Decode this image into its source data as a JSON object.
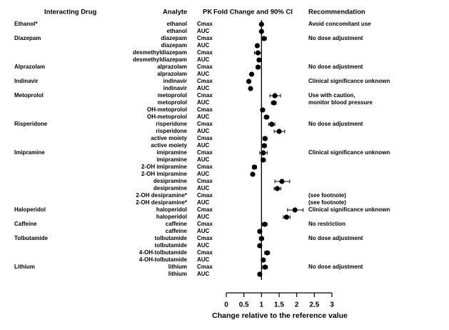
{
  "chart_data": {
    "type": "forest",
    "headers": [
      "Interacting Drug",
      "Analyte",
      "PK",
      "Fold Change and 90% CI",
      "Recommendation"
    ],
    "xlabel": "Change relative to the reference value",
    "xlim": [
      0,
      3
    ],
    "xticks": [
      0,
      0.5,
      1,
      1.5,
      2,
      2.5,
      3
    ],
    "reference": 1,
    "rows": [
      {
        "drug": "Ethanol*",
        "analyte": "ethanol",
        "pk": "Cmax",
        "estimate": 1.0,
        "lower": 0.97,
        "upper": 1.04,
        "recommendation": "Avoid concomitant use"
      },
      {
        "drug": null,
        "analyte": "ethanol",
        "pk": "AUC",
        "estimate": 1.0,
        "lower": 0.97,
        "upper": 1.03,
        "recommendation": null
      },
      {
        "drug": "Diazepam",
        "analyte": "diazepam",
        "pk": "Cmax",
        "estimate": 1.07,
        "lower": 1.0,
        "upper": 1.14,
        "recommendation": "No dose adjustment"
      },
      {
        "drug": null,
        "analyte": "diazepam",
        "pk": "AUC",
        "estimate": 0.88,
        "lower": 0.83,
        "upper": 0.93,
        "recommendation": null
      },
      {
        "drug": null,
        "analyte": "desmethyldiazepam",
        "pk": "Cmax",
        "estimate": 0.9,
        "lower": 0.8,
        "upper": 1.0,
        "recommendation": null
      },
      {
        "drug": null,
        "analyte": "desmethyldiazepam",
        "pk": "AUC",
        "estimate": 0.93,
        "lower": 0.88,
        "upper": 0.99,
        "recommendation": null
      },
      {
        "drug": "Alprazolam",
        "analyte": "alprazolam",
        "pk": "Cmax",
        "estimate": 0.9,
        "lower": 0.85,
        "upper": 0.96,
        "recommendation": "No dose adjustment"
      },
      {
        "drug": null,
        "analyte": "alprazolam",
        "pk": "AUC",
        "estimate": 0.72,
        "lower": 0.68,
        "upper": 0.76,
        "recommendation": null
      },
      {
        "drug": "Indinavir",
        "analyte": "indinavir",
        "pk": "Cmax",
        "estimate": 0.64,
        "lower": 0.6,
        "upper": 0.69,
        "recommendation": "Clinical significance unknown"
      },
      {
        "drug": null,
        "analyte": "indinavir",
        "pk": "AUC",
        "estimate": 0.69,
        "lower": 0.66,
        "upper": 0.73,
        "recommendation": null
      },
      {
        "drug": "Metoprolol",
        "analyte": "metoprolol",
        "pk": "Cmax",
        "estimate": 1.38,
        "lower": 1.24,
        "upper": 1.54,
        "recommendation": "Use with caution,"
      },
      {
        "drug": null,
        "analyte": "metoprolol",
        "pk": "AUC",
        "estimate": 1.35,
        "lower": 1.28,
        "upper": 1.42,
        "recommendation": "monitor blood pressure"
      },
      {
        "drug": null,
        "analyte": "OH-metoprolol",
        "pk": "Cmax",
        "estimate": 1.03,
        "lower": 0.98,
        "upper": 1.09,
        "recommendation": null
      },
      {
        "drug": null,
        "analyte": "OH-metoprolol",
        "pk": "AUC",
        "estimate": 1.14,
        "lower": 1.08,
        "upper": 1.21,
        "recommendation": null
      },
      {
        "drug": "Risperidone",
        "analyte": "risperidone",
        "pk": "Cmax",
        "estimate": 1.29,
        "lower": 1.2,
        "upper": 1.38,
        "recommendation": "No dose adjustment"
      },
      {
        "drug": null,
        "analyte": "risperidone",
        "pk": "AUC",
        "estimate": 1.5,
        "lower": 1.36,
        "upper": 1.66,
        "recommendation": null
      },
      {
        "drug": null,
        "analyte": "active moiety",
        "pk": "Cmax",
        "estimate": 1.1,
        "lower": 1.04,
        "upper": 1.16,
        "recommendation": null
      },
      {
        "drug": null,
        "analyte": "active moiety",
        "pk": "AUC",
        "estimate": 1.08,
        "lower": 1.02,
        "upper": 1.14,
        "recommendation": null
      },
      {
        "drug": "Imipramine",
        "analyte": "imipramine",
        "pk": "Cmax",
        "estimate": 1.05,
        "lower": 0.95,
        "upper": 1.16,
        "recommendation": "Clinical significance unknown"
      },
      {
        "drug": null,
        "analyte": "imipramine",
        "pk": "AUC",
        "estimate": 1.05,
        "lower": 0.99,
        "upper": 1.11,
        "recommendation": null
      },
      {
        "drug": null,
        "analyte": "2-OH imipramine",
        "pk": "Cmax",
        "estimate": 0.8,
        "lower": 0.74,
        "upper": 0.86,
        "recommendation": null
      },
      {
        "drug": null,
        "analyte": "2-OH imipramine",
        "pk": "AUC",
        "estimate": 0.75,
        "lower": 0.71,
        "upper": 0.8,
        "recommendation": null
      },
      {
        "drug": null,
        "analyte": "desipramine",
        "pk": "Cmax",
        "estimate": 1.58,
        "lower": 1.38,
        "upper": 1.8,
        "recommendation": null
      },
      {
        "drug": null,
        "analyte": "desipramine",
        "pk": "AUC",
        "estimate": 1.45,
        "lower": 1.36,
        "upper": 1.55,
        "recommendation": null
      },
      {
        "drug": null,
        "analyte": "2-OH desipramine*",
        "pk": "Cmax",
        "estimate": null,
        "lower": null,
        "upper": null,
        "recommendation": "(see footnote)"
      },
      {
        "drug": null,
        "analyte": "2-OH desipramine*",
        "pk": "AUC",
        "estimate": null,
        "lower": null,
        "upper": null,
        "recommendation": "(see footnote)"
      },
      {
        "drug": "Haloperidol",
        "analyte": "haloperidol",
        "pk": "Cmax",
        "estimate": 1.95,
        "lower": 1.74,
        "upper": 2.18,
        "recommendation": "Clinical significance unknown"
      },
      {
        "drug": null,
        "analyte": "haloperidol",
        "pk": "AUC",
        "estimate": 1.71,
        "lower": 1.62,
        "upper": 1.81,
        "recommendation": null
      },
      {
        "drug": "Caffeine",
        "analyte": "caffeine",
        "pk": "Cmax",
        "estimate": 1.09,
        "lower": 1.02,
        "upper": 1.16,
        "recommendation": "No restriction"
      },
      {
        "drug": null,
        "analyte": "caffeine",
        "pk": "AUC",
        "estimate": 0.95,
        "lower": 0.9,
        "upper": 1.0,
        "recommendation": null
      },
      {
        "drug": "Tolbutamide",
        "analyte": "tolbutamide",
        "pk": "Cmax",
        "estimate": 1.0,
        "lower": 0.94,
        "upper": 1.06,
        "recommendation": "No dose adjustment"
      },
      {
        "drug": null,
        "analyte": "tolbutamide",
        "pk": "AUC",
        "estimate": 0.95,
        "lower": 0.91,
        "upper": 0.99,
        "recommendation": null
      },
      {
        "drug": null,
        "analyte": "4-OH-tolbutamide",
        "pk": "Cmax",
        "estimate": 1.16,
        "lower": 1.09,
        "upper": 1.23,
        "recommendation": null
      },
      {
        "drug": null,
        "analyte": "4-OH-tolbutamide",
        "pk": "AUC",
        "estimate": 1.05,
        "lower": 1.0,
        "upper": 1.1,
        "recommendation": null
      },
      {
        "drug": "Lithium",
        "analyte": "lithium",
        "pk": "Cmax",
        "estimate": 1.1,
        "lower": 1.03,
        "upper": 1.17,
        "recommendation": "No dose adjustment"
      },
      {
        "drug": null,
        "analyte": "lithium",
        "pk": "AUC",
        "estimate": 0.95,
        "lower": 0.9,
        "upper": 1.0,
        "recommendation": null
      }
    ]
  }
}
